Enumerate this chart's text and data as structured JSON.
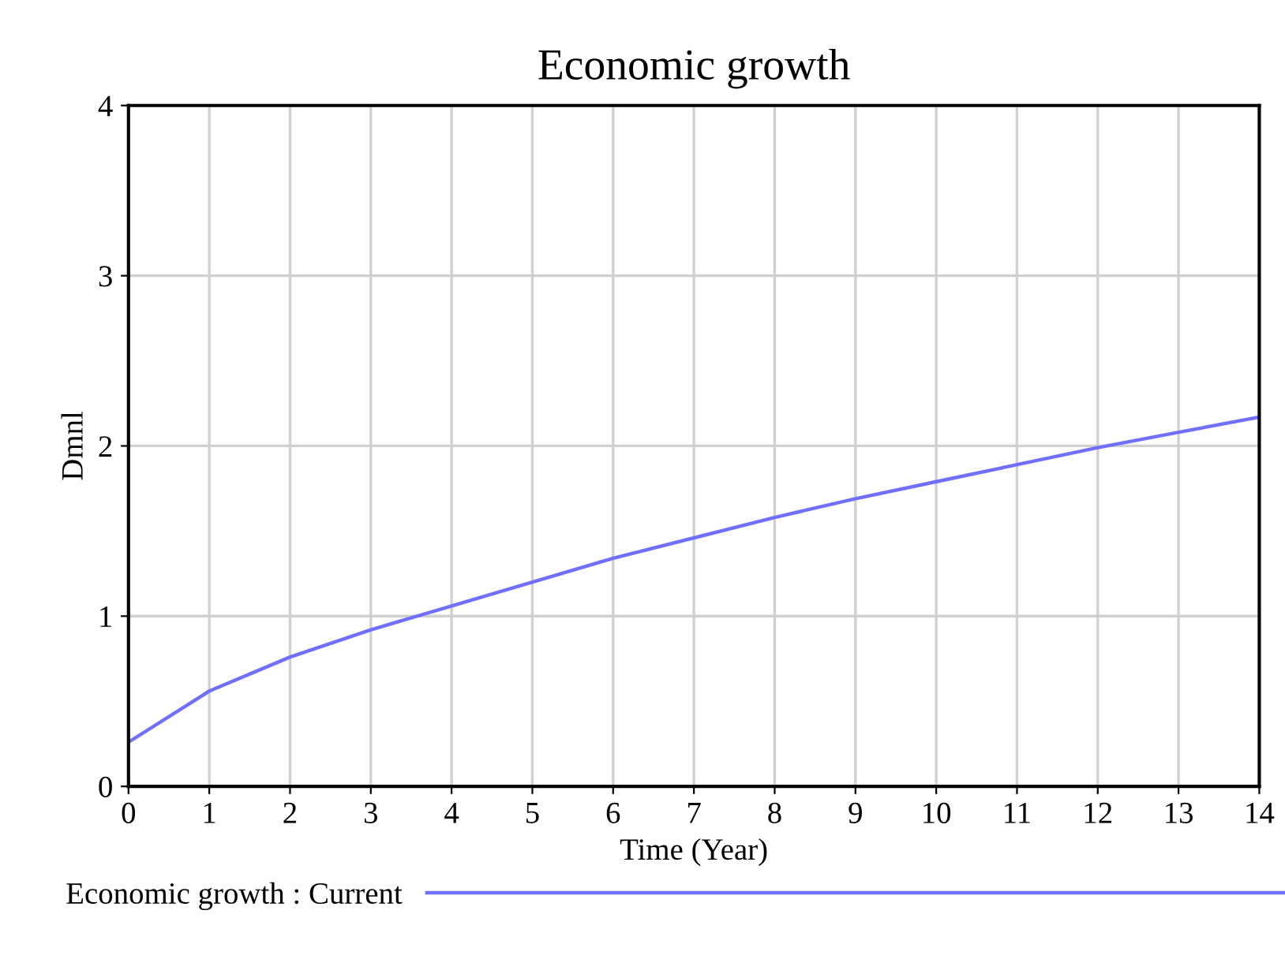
{
  "chart_data": {
    "type": "line",
    "title": "Economic growth",
    "xlabel": "Time (Year)",
    "ylabel": "Dmnl",
    "x": [
      0,
      1,
      2,
      3,
      4,
      5,
      6,
      7,
      8,
      9,
      10,
      11,
      12,
      13,
      14
    ],
    "series": [
      {
        "name": "Economic growth : Current",
        "color": "#7070ff",
        "values": [
          0.26,
          0.56,
          0.76,
          0.92,
          1.06,
          1.2,
          1.34,
          1.46,
          1.58,
          1.69,
          1.79,
          1.89,
          1.99,
          2.08,
          2.17
        ]
      }
    ],
    "xlim": [
      0,
      14
    ],
    "xticks": [
      0,
      1,
      2,
      3,
      4,
      5,
      6,
      7,
      8,
      9,
      10,
      11,
      12,
      13,
      14
    ],
    "ylim": [
      0,
      4
    ],
    "yticks": [
      0,
      1,
      2,
      3,
      4
    ],
    "grid": true,
    "legend": "bottom",
    "marker": "none",
    "line_style": "solid"
  }
}
